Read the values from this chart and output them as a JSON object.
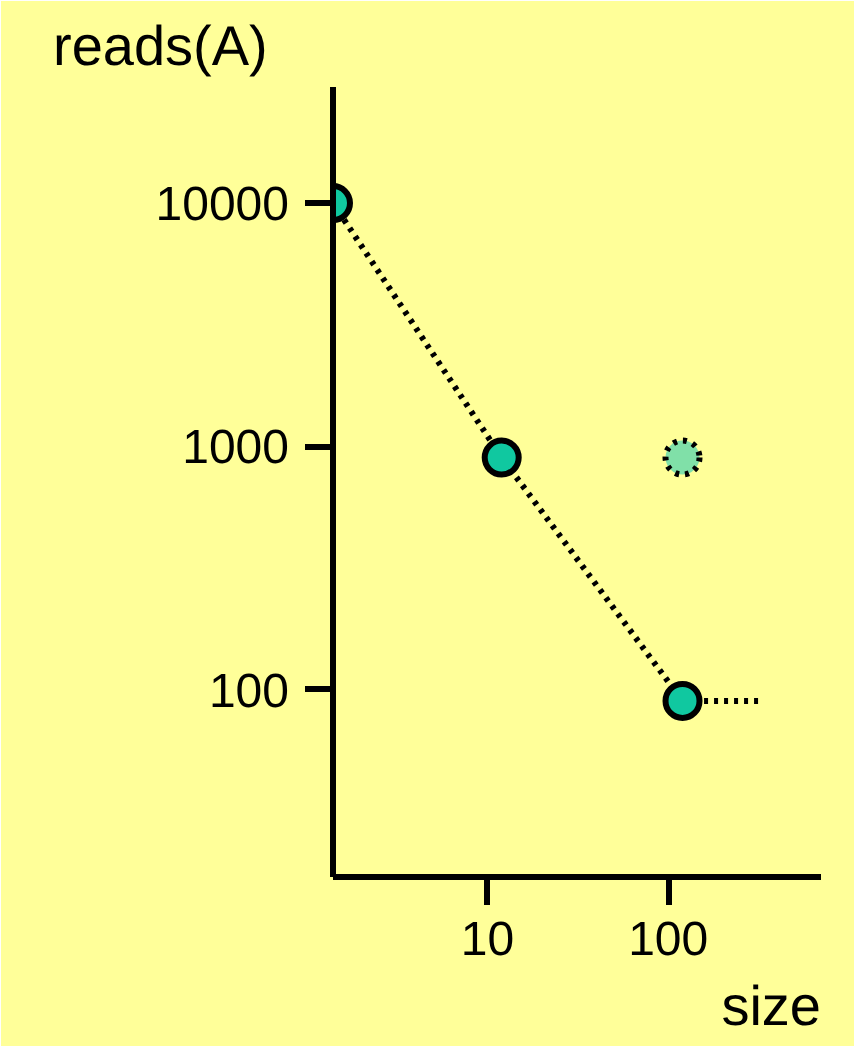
{
  "chart_data": {
    "type": "scatter",
    "ylabel": "reads(A)",
    "xlabel": "size",
    "log": "xy",
    "xlim": [
      1.4,
      700
    ],
    "ylim": [
      17,
      30000
    ],
    "xticks": [
      10,
      100
    ],
    "yticks": [
      100,
      1000,
      10000
    ],
    "grid": false,
    "marker": "circle",
    "series": [
      {
        "type": "line",
        "marker": "none",
        "line_style": "dotted",
        "color": "#000000",
        "x": [
          1.4,
          12,
          120,
          320
        ],
        "values": [
          10000,
          900,
          90,
          90
        ]
      },
      {
        "color": "#10c8a0",
        "x": [
          1.4,
          12,
          120
        ],
        "values": [
          10000,
          900,
          90
        ]
      },
      {
        "color": "#80e0a8",
        "line_style": "dotted",
        "x": [
          120
        ],
        "values": [
          900
        ]
      }
    ]
  }
}
